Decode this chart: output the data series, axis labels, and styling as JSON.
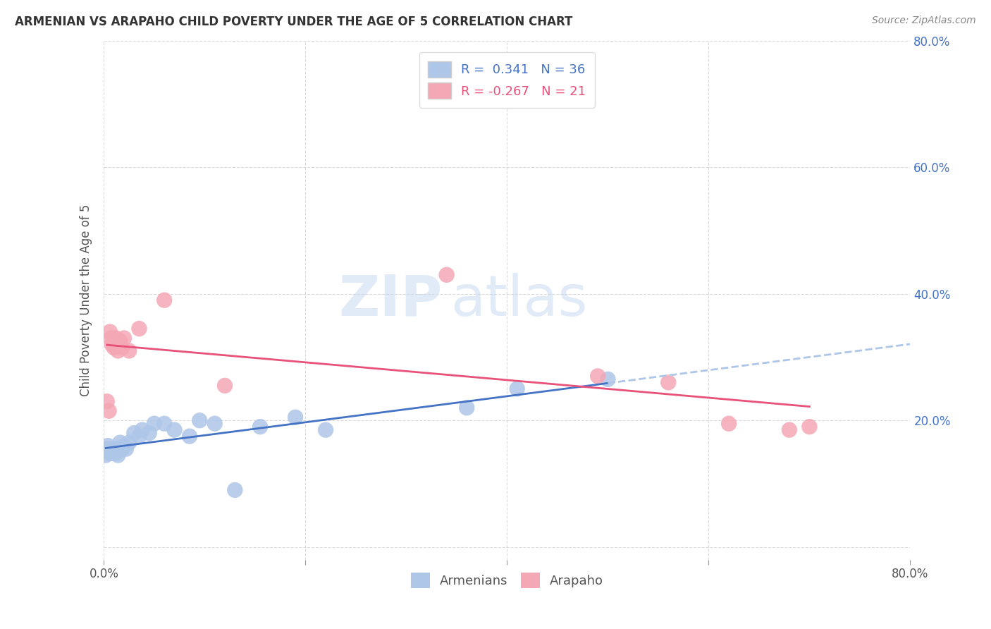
{
  "title": "ARMENIAN VS ARAPAHO CHILD POVERTY UNDER THE AGE OF 5 CORRELATION CHART",
  "source": "Source: ZipAtlas.com",
  "ylabel": "Child Poverty Under the Age of 5",
  "xlim": [
    0.0,
    0.8
  ],
  "ylim": [
    -0.02,
    0.8
  ],
  "xticks": [
    0.0,
    0.2,
    0.4,
    0.6,
    0.8
  ],
  "yticks": [
    0.0,
    0.2,
    0.4,
    0.6,
    0.8
  ],
  "right_ytick_labels": [
    "",
    "20.0%",
    "40.0%",
    "60.0%",
    "80.0%"
  ],
  "armenian_R": 0.341,
  "armenian_N": 36,
  "arapaho_R": -0.267,
  "arapaho_N": 21,
  "armenian_color": "#AEC6E8",
  "arapaho_color": "#F4A7B4",
  "armenian_line_color": "#4472C4",
  "arapaho_line_color": "#E8527A",
  "trend_extend_color": "#AEC6E8",
  "background_color": "#FFFFFF",
  "grid_color": "#CCCCCC",
  "title_color": "#4472C4",
  "watermark_zip": "ZIP",
  "watermark_atlas": "atlas",
  "armenian_x": [
    0.002,
    0.003,
    0.004,
    0.005,
    0.006,
    0.007,
    0.008,
    0.009,
    0.01,
    0.011,
    0.012,
    0.013,
    0.014,
    0.015,
    0.016,
    0.018,
    0.02,
    0.022,
    0.025,
    0.03,
    0.035,
    0.038,
    0.045,
    0.05,
    0.06,
    0.07,
    0.085,
    0.095,
    0.11,
    0.13,
    0.155,
    0.19,
    0.22,
    0.36,
    0.41,
    0.5
  ],
  "armenian_y": [
    0.145,
    0.155,
    0.16,
    0.155,
    0.148,
    0.15,
    0.148,
    0.15,
    0.155,
    0.148,
    0.155,
    0.15,
    0.145,
    0.155,
    0.165,
    0.155,
    0.16,
    0.155,
    0.165,
    0.18,
    0.175,
    0.185,
    0.18,
    0.195,
    0.195,
    0.185,
    0.175,
    0.2,
    0.195,
    0.09,
    0.19,
    0.205,
    0.185,
    0.22,
    0.25,
    0.265
  ],
  "arapaho_x": [
    0.003,
    0.005,
    0.006,
    0.007,
    0.008,
    0.01,
    0.012,
    0.014,
    0.016,
    0.018,
    0.02,
    0.025,
    0.035,
    0.06,
    0.12,
    0.34,
    0.49,
    0.56,
    0.62,
    0.68,
    0.7
  ],
  "arapaho_y": [
    0.23,
    0.215,
    0.34,
    0.33,
    0.32,
    0.315,
    0.33,
    0.31,
    0.325,
    0.315,
    0.33,
    0.31,
    0.345,
    0.39,
    0.255,
    0.43,
    0.27,
    0.26,
    0.195,
    0.185,
    0.19
  ]
}
